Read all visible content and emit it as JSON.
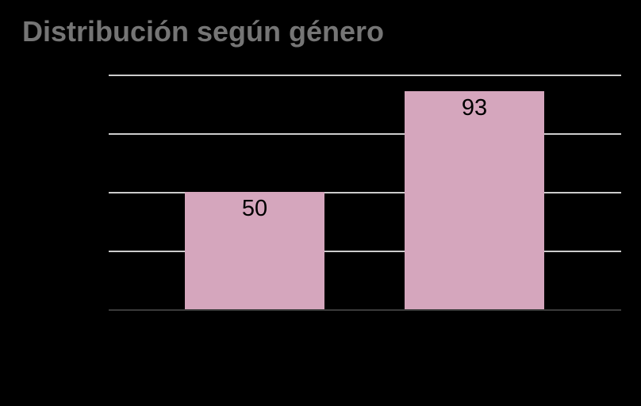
{
  "page": {
    "background": "#000000"
  },
  "chart_data": {
    "type": "bar",
    "title": "Distribución según género",
    "categories": [
      "",
      ""
    ],
    "values": [
      50,
      93
    ],
    "xlabel": "",
    "ylabel": "",
    "ylim": [
      0,
      100
    ],
    "gridline_values": [
      25,
      50,
      75,
      100
    ],
    "grid": true,
    "legend_position": "none",
    "colors": {
      "bar": "#d5a6bd",
      "value_label": "#000000",
      "title": "#757575",
      "gridline": "#cccccc",
      "axis_line": "#3a3a3a",
      "background": "#000000"
    }
  }
}
